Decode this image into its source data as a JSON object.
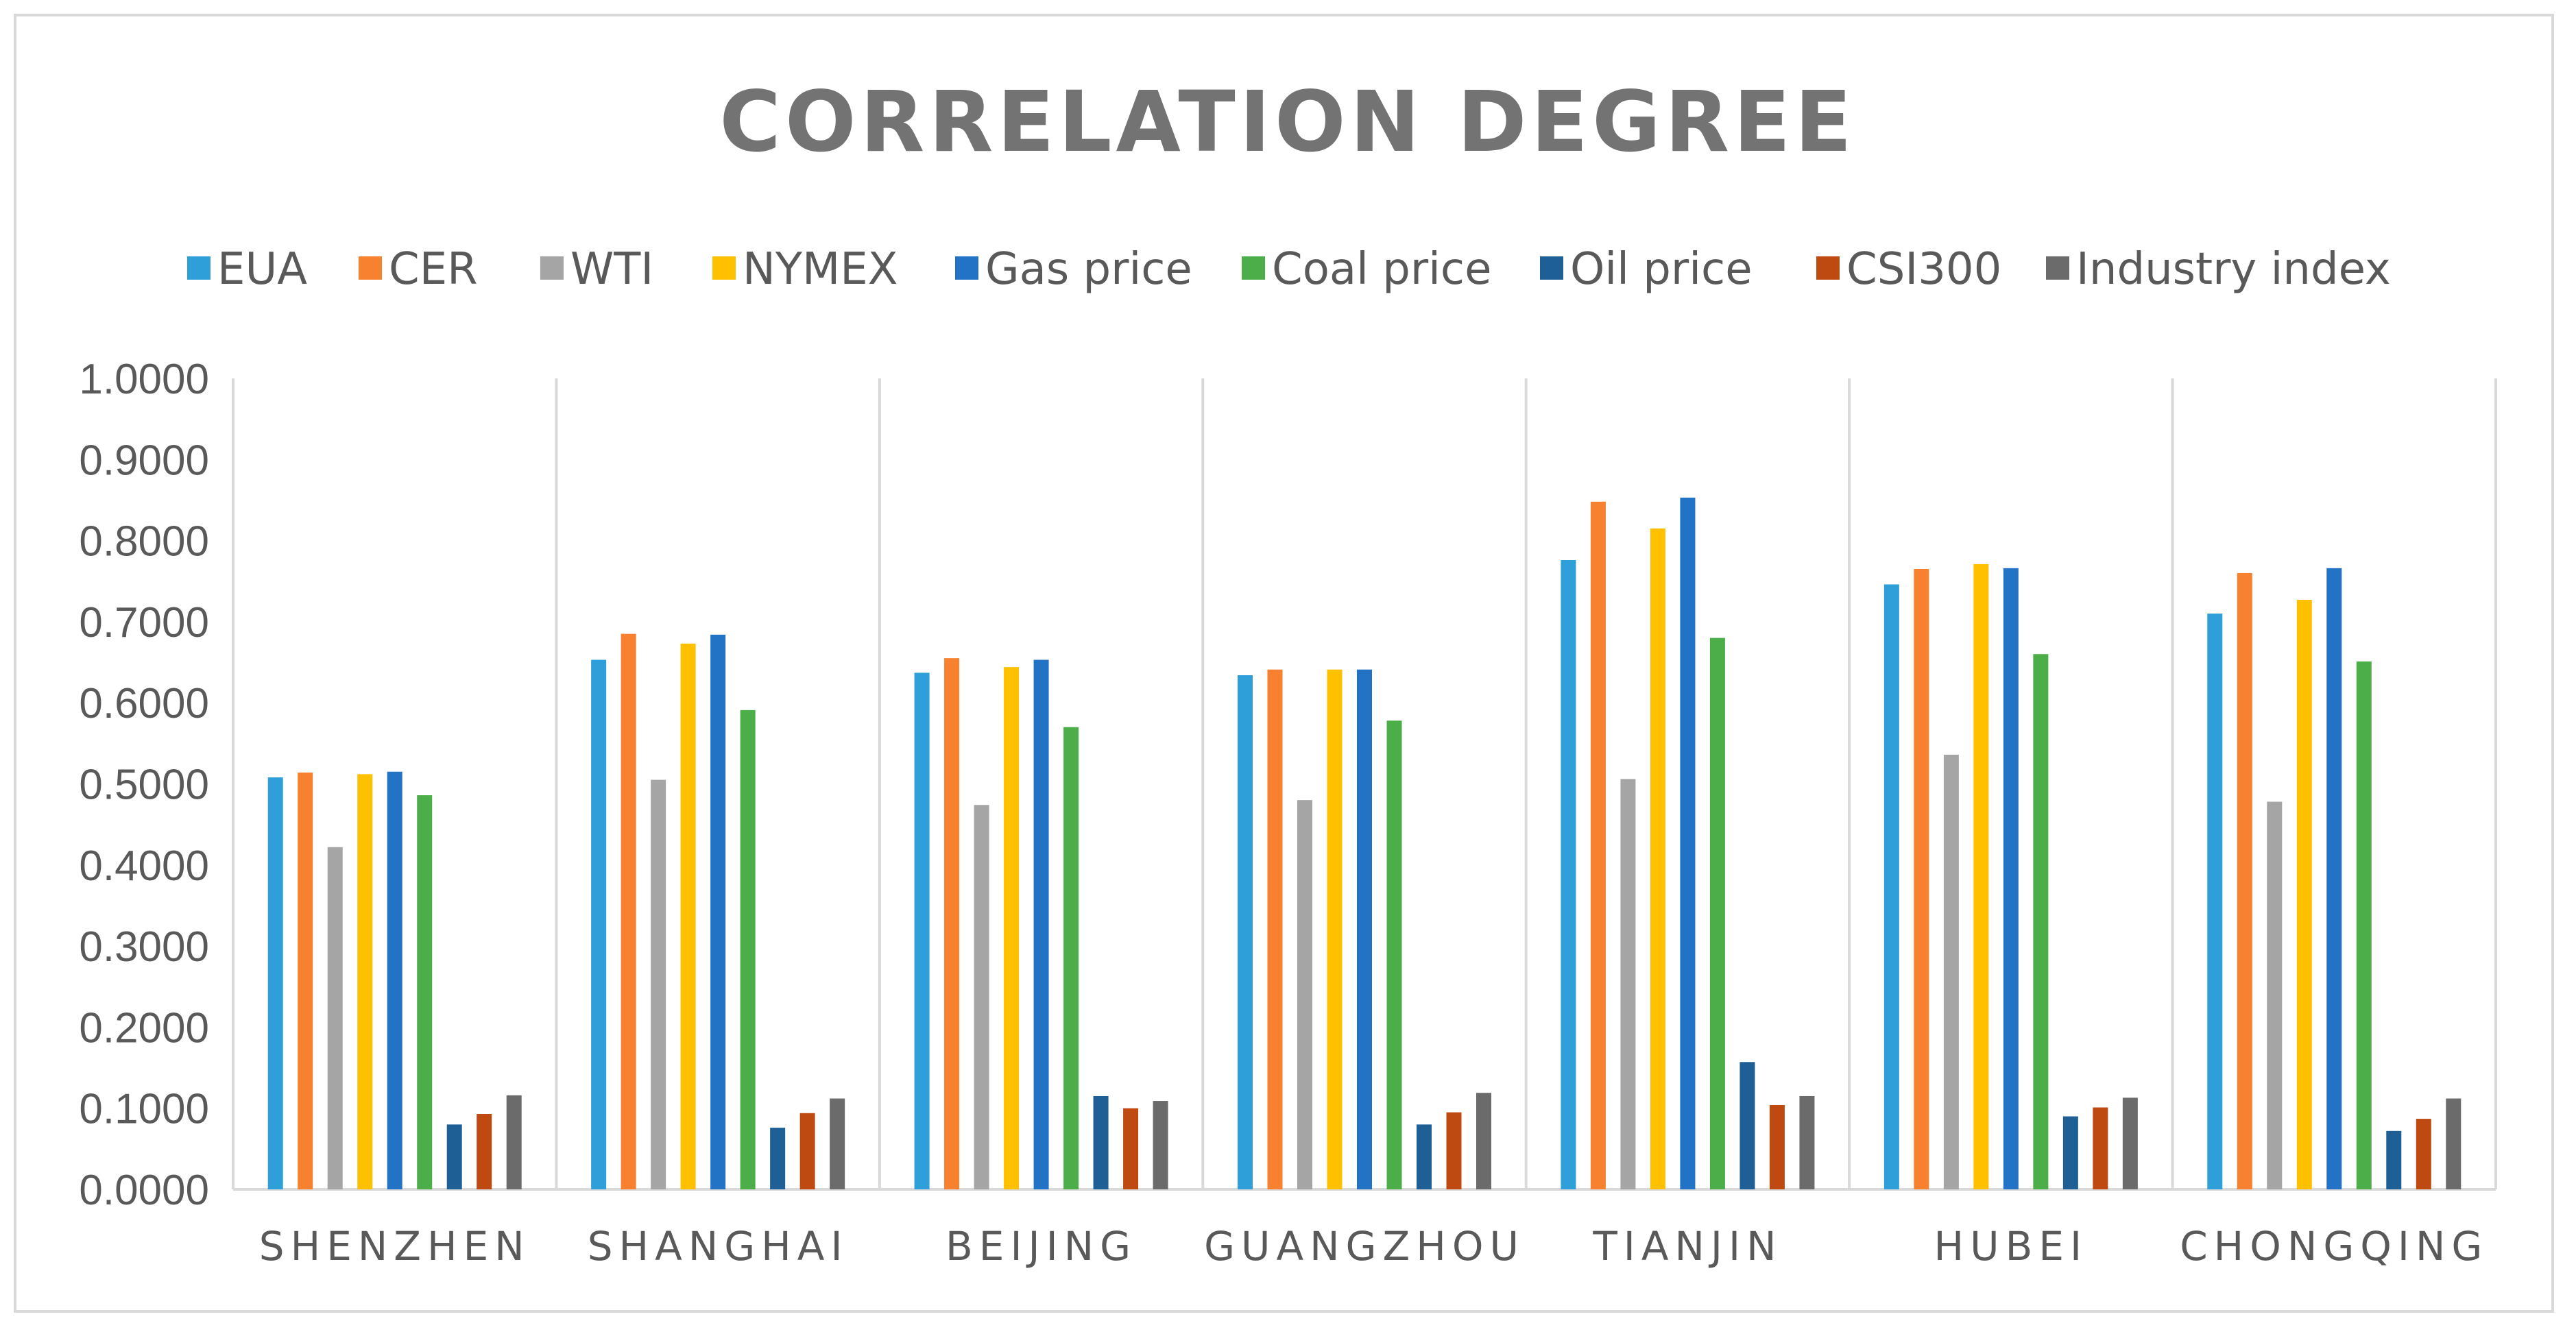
{
  "chart_data": {
    "type": "bar",
    "title": "CORRELATION DEGREE",
    "xlabel": "",
    "ylabel": "",
    "ylim": [
      0,
      1
    ],
    "yticks": [
      "0.0000",
      "0.1000",
      "0.2000",
      "0.3000",
      "0.4000",
      "0.5000",
      "0.6000",
      "0.7000",
      "0.8000",
      "0.9000",
      "1.0000"
    ],
    "legend_position": "top",
    "grid": false,
    "categories": [
      "SHENZHEN",
      "SHANGHAI",
      "BEIJING",
      "GUANGZHOU",
      "TIANJIN",
      "HUBEI",
      "CHONGQING"
    ],
    "series": [
      {
        "name": "EUA",
        "color": "#2e9fd8",
        "values": [
          0.508,
          0.653,
          0.637,
          0.634,
          0.776,
          0.746,
          0.71
        ]
      },
      {
        "name": "CER",
        "color": "#f7812e",
        "values": [
          0.514,
          0.685,
          0.655,
          0.641,
          0.848,
          0.765,
          0.76
        ]
      },
      {
        "name": "WTI",
        "color": "#a5a5a5",
        "values": [
          0.422,
          0.505,
          0.474,
          0.48,
          0.506,
          0.536,
          0.478
        ]
      },
      {
        "name": "NYMEX",
        "color": "#ffc000",
        "values": [
          0.512,
          0.673,
          0.644,
          0.641,
          0.815,
          0.771,
          0.727
        ]
      },
      {
        "name": "Gas price",
        "color": "#2272c6",
        "values": [
          0.515,
          0.684,
          0.653,
          0.641,
          0.853,
          0.766,
          0.766
        ]
      },
      {
        "name": "Coal price",
        "color": "#4bae48",
        "values": [
          0.486,
          0.591,
          0.57,
          0.578,
          0.68,
          0.66,
          0.651
        ]
      },
      {
        "name": "Oil price",
        "color": "#1e5f96",
        "values": [
          0.08,
          0.076,
          0.115,
          0.08,
          0.157,
          0.09,
          0.072
        ]
      },
      {
        "name": "CSI300",
        "color": "#be4a12",
        "values": [
          0.093,
          0.094,
          0.1,
          0.095,
          0.104,
          0.101,
          0.087
        ]
      },
      {
        "name": "Industry index",
        "color": "#6b6b6b",
        "values": [
          0.116,
          0.112,
          0.109,
          0.119,
          0.115,
          0.113,
          0.112
        ]
      }
    ]
  }
}
